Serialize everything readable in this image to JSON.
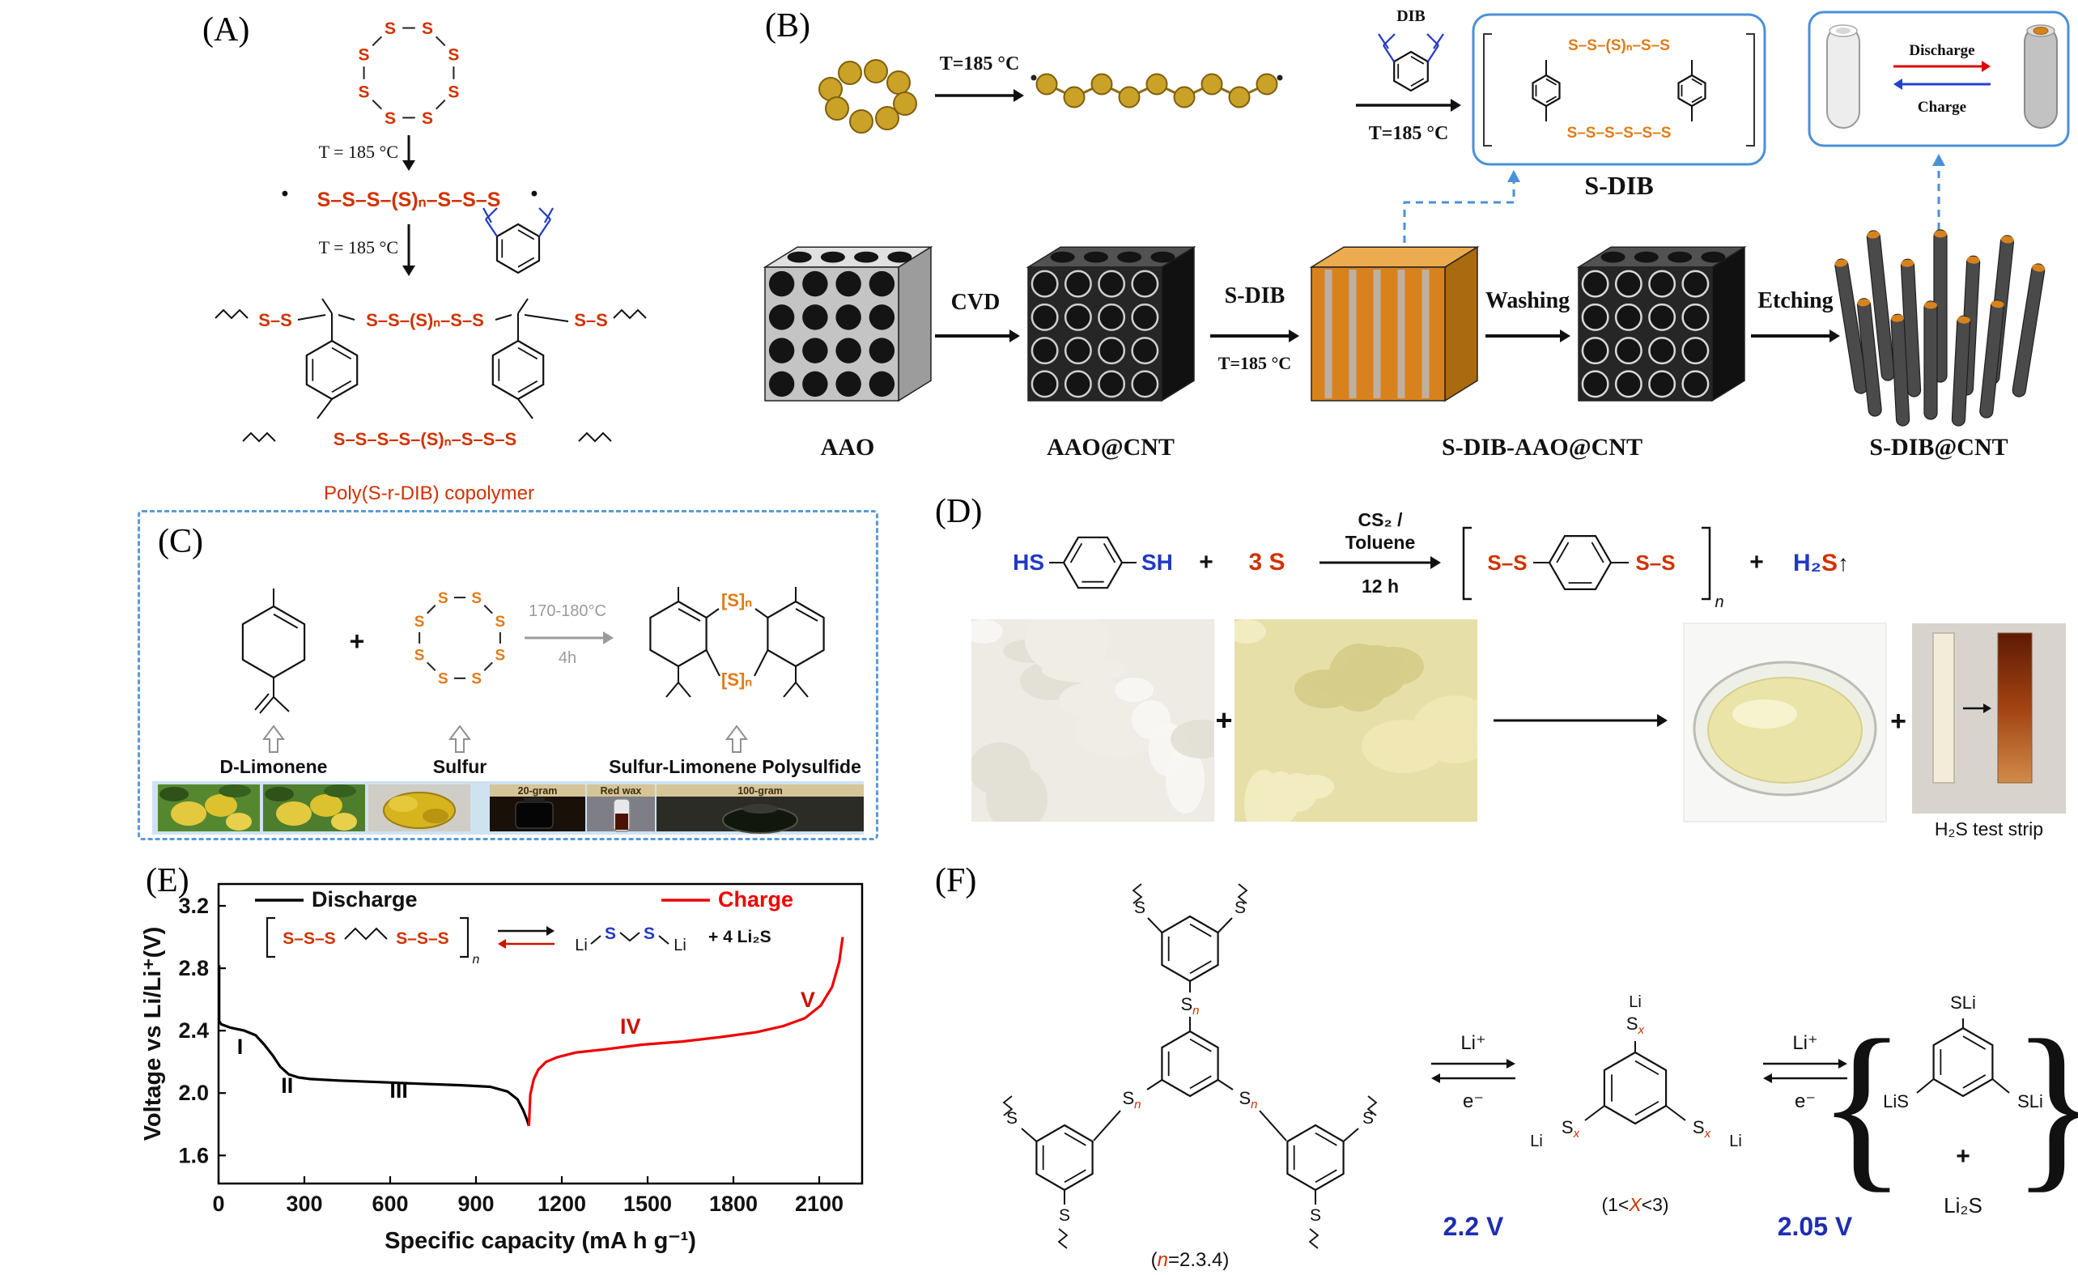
{
  "colors": {
    "s_red": "#d13200",
    "s_orange": "#e07b17",
    "blue": "#2239c4",
    "box_blue": "#4a90d9",
    "charge_red": "#e60000",
    "gray": "#9b9b9b",
    "voltage_blue": "#1f2db0",
    "ball_yellow": "#c9a227",
    "ball_edge": "#7f5f0e",
    "cube_orange": "#d8821e"
  },
  "sym": {
    "s": "S"
  },
  "panels": {
    "A": {
      "label": "(A)",
      "temp1": "T = 185 °C",
      "temp2": "T = 185 °C",
      "radical": "•",
      "chain": "S–S–S–(S)ₙ–S–S–S",
      "chain_top_left": "S–S",
      "chain_top_mid": "S–S–(S)ₙ–S–S",
      "chain_top_right": "S–S",
      "chain_bottom": "S–S–S–S–(S)ₙ–S–S–S",
      "caption": "Poly(S-r-DIB) copolymer"
    },
    "B": {
      "label": "(B)",
      "temp1": "T=185 °C",
      "dib": "DIB",
      "temp2": "T=185 °C",
      "chain_top": "S–S–(S)ₙ–S–S",
      "chain_bottom": "S–S–S–S–S–S",
      "sdib": "S-DIB",
      "discharge": "Discharge",
      "charge": "Charge",
      "aao": "AAO",
      "cvd": "CVD",
      "aao_cnt": "AAO@CNT",
      "step_sdib": "S-DIB",
      "step_temp": "T=185 °C",
      "sdib_aao_cnt": "S-DIB-AAO@CNT",
      "washing": "Washing",
      "etching": "Etching",
      "sdib_cnt": "S-DIB@CNT"
    },
    "C": {
      "label": "(C)",
      "plus": "+",
      "cond1": "170-180°C",
      "cond2": "4h",
      "sn": "[S]ₙ",
      "name1": "D-Limonene",
      "name2": "Sulfur",
      "name3": "Sulfur-Limonene Polysulfide",
      "cap1": "20-gram",
      "cap2": "Red wax",
      "cap3": "100-gram"
    },
    "D": {
      "label": "(D)",
      "hs": "HS",
      "sh": "SH",
      "plus1": "+",
      "three_s": "3 S",
      "cond1": "CS₂ /",
      "cond2": "Toluene",
      "cond3": "12 h",
      "ss": "S–S",
      "sub_n": "n",
      "plus2": "+",
      "h2": "H₂",
      "s": "S",
      "up": "↑",
      "plus3": "+",
      "strip_caption": "H₂S test strip"
    },
    "E": {
      "label": "(E)",
      "inset": {
        "chain_left": "S–S–S",
        "chain_right": "S–S–S",
        "sub_n": "n",
        "li": "Li",
        "s": "S",
        "plus_li2s": "+  4 Li₂S"
      }
    },
    "F": {
      "label": "(F)",
      "s": "S",
      "n_sub": "n",
      "x_sub": "x",
      "li": "Li",
      "li_ion": "Li⁺",
      "e": "e⁻",
      "v1": "2.2 V",
      "v2": "2.05 V",
      "n_pre": "(",
      "n_mid": "n",
      "n_post": "=2.3.4)",
      "x_pre": "(1<",
      "x_mid": "X",
      "x_post": "<3)",
      "sli": "SLi",
      "lis": "LiS",
      "plus": "+",
      "li2s": "Li₂S",
      "brace_l": "{",
      "brace_r": "}"
    }
  },
  "chart_data": {
    "type": "line",
    "title": "",
    "xlabel": "Specific capacity (mA h g⁻¹)",
    "ylabel": "Voltage vs Li/Li⁺(V)",
    "xlim": [
      0,
      2250
    ],
    "ylim": [
      1.42,
      3.34
    ],
    "xticks": [
      0,
      300,
      600,
      900,
      1200,
      1500,
      1800,
      2100
    ],
    "xtick_labels": [
      "0",
      "300",
      "600",
      "900",
      "1200",
      "1500",
      "1800",
      "2100"
    ],
    "yticks": [
      1.6,
      2.0,
      2.4,
      2.8,
      3.2
    ],
    "ytick_labels": [
      "1.6",
      "2.0",
      "2.4",
      "2.8",
      "3.2"
    ],
    "grid": false,
    "legend_position": "top-inside",
    "series": [
      {
        "name": "Discharge",
        "color": "#000000",
        "x": [
          2,
          2,
          10,
          40,
          90,
          130,
          160,
          190,
          215,
          245,
          280,
          320,
          420,
          560,
          700,
          850,
          950,
          1010,
          1045,
          1065,
          1078,
          1085
        ],
        "y": [
          2.82,
          2.46,
          2.44,
          2.42,
          2.4,
          2.37,
          2.31,
          2.24,
          2.17,
          2.12,
          2.1,
          2.09,
          2.08,
          2.07,
          2.06,
          2.05,
          2.04,
          2.01,
          1.96,
          1.89,
          1.83,
          1.79
        ]
      },
      {
        "name": "Charge",
        "color": "#ee0000",
        "x": [
          1085,
          1090,
          1102,
          1118,
          1145,
          1185,
          1250,
          1350,
          1480,
          1620,
          1760,
          1880,
          1975,
          2050,
          2105,
          2145,
          2170,
          2182
        ],
        "y": [
          1.79,
          1.99,
          2.09,
          2.15,
          2.2,
          2.23,
          2.26,
          2.28,
          2.31,
          2.33,
          2.36,
          2.39,
          2.43,
          2.48,
          2.56,
          2.68,
          2.84,
          3.0
        ]
      }
    ],
    "annotations": [
      {
        "text": "I",
        "x": 75,
        "y": 2.25,
        "color": "#000000"
      },
      {
        "text": "II",
        "x": 240,
        "y": 2.0,
        "color": "#000000"
      },
      {
        "text": "III",
        "x": 630,
        "y": 1.97,
        "color": "#000000"
      },
      {
        "text": "IV",
        "x": 1440,
        "y": 2.38,
        "color": "#cc1100"
      },
      {
        "text": "V",
        "x": 2060,
        "y": 2.55,
        "color": "#cc1100"
      }
    ]
  }
}
